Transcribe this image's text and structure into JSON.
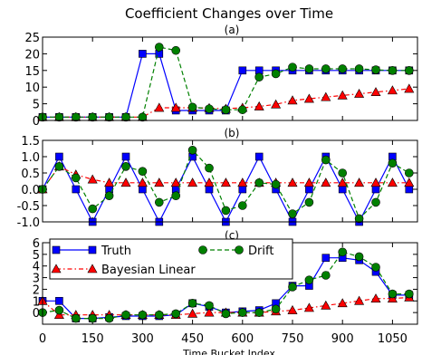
{
  "figure": {
    "title": "Coefficient Changes over Time",
    "xlabel": "Time Bucket Index",
    "xticks": [
      0,
      150,
      300,
      450,
      600,
      750,
      900,
      1050
    ],
    "xlim": [
      0,
      1125
    ]
  },
  "colors": {
    "truth": "#0000ff",
    "bayesian": "#ff0000",
    "drift": "#008000"
  },
  "chart_data": [
    {
      "type": "line",
      "subtitle": "(a)",
      "ylim": [
        0,
        25
      ],
      "yticks": [
        0,
        5,
        10,
        15,
        20,
        25
      ],
      "x": [
        0,
        50,
        100,
        150,
        200,
        250,
        300,
        350,
        400,
        450,
        500,
        550,
        600,
        650,
        700,
        750,
        800,
        850,
        900,
        950,
        1000,
        1050,
        1100
      ],
      "series": [
        {
          "name": "Truth",
          "style": "solid-square",
          "values": [
            1,
            1,
            1,
            1,
            1,
            1,
            20,
            20,
            3,
            3,
            3,
            3,
            15,
            15,
            15,
            15,
            15,
            15,
            15,
            15,
            15,
            15,
            15
          ]
        },
        {
          "name": "Bayesian Linear",
          "style": "dashdot-triangle",
          "values": [
            1,
            1,
            1,
            1,
            1,
            1,
            1,
            3.8,
            3.8,
            3.8,
            3.7,
            3.5,
            3.8,
            4.2,
            4.8,
            6,
            6.5,
            7,
            7.5,
            8,
            8.5,
            9,
            9.5
          ]
        },
        {
          "name": "Drift",
          "style": "dashed-circle",
          "values": [
            1,
            1,
            1,
            1,
            1,
            1,
            1,
            22,
            21,
            4,
            3.5,
            3.2,
            3.2,
            13,
            14,
            16,
            15.5,
            15.5,
            15.5,
            15.5,
            15.2,
            15,
            15
          ]
        }
      ]
    },
    {
      "type": "line",
      "subtitle": "(b)",
      "ylim": [
        -1.0,
        1.5
      ],
      "yticks": [
        -1.0,
        -0.5,
        0.0,
        0.5,
        1.0,
        1.5
      ],
      "x": [
        0,
        50,
        100,
        150,
        200,
        250,
        300,
        350,
        400,
        450,
        500,
        550,
        600,
        650,
        700,
        750,
        800,
        850,
        900,
        950,
        1000,
        1050,
        1100
      ],
      "series": [
        {
          "name": "Truth",
          "style": "solid-square",
          "values": [
            0,
            1,
            0,
            -1,
            0,
            1,
            0,
            -1,
            0,
            1,
            0,
            -1,
            0,
            1,
            0,
            -1,
            0,
            1,
            0,
            -1,
            0,
            1,
            0
          ]
        },
        {
          "name": "Bayesian Linear",
          "style": "dashdot-triangle",
          "values": [
            0,
            0.7,
            0.45,
            0.3,
            0.2,
            0.2,
            0.2,
            0.2,
            0.2,
            0.2,
            0.2,
            0.2,
            0.2,
            0.2,
            0.2,
            0.2,
            0.2,
            0.2,
            0.2,
            0.2,
            0.2,
            0.2,
            0.2
          ]
        },
        {
          "name": "Drift",
          "style": "dashed-circle",
          "values": [
            0,
            0.7,
            0.35,
            -0.6,
            -0.2,
            0.7,
            0.55,
            -0.4,
            -0.2,
            1.2,
            0.65,
            -0.65,
            -0.5,
            0.2,
            0.15,
            -0.75,
            -0.4,
            0.9,
            0.5,
            -0.9,
            -0.4,
            0.8,
            0.5
          ]
        }
      ]
    },
    {
      "type": "line",
      "subtitle": "(c)",
      "ylim": [
        -1,
        6
      ],
      "yticks": [
        0,
        1,
        2,
        3,
        4,
        5,
        6
      ],
      "x": [
        0,
        50,
        100,
        150,
        200,
        250,
        300,
        350,
        400,
        450,
        500,
        550,
        600,
        650,
        700,
        750,
        800,
        850,
        900,
        950,
        1000,
        1050,
        1100
      ],
      "series": [
        {
          "name": "Truth",
          "style": "solid-square",
          "values": [
            1,
            1,
            -0.5,
            -0.5,
            -0.4,
            -0.3,
            -0.3,
            -0.3,
            -0.2,
            0.8,
            0.5,
            0,
            0.1,
            0.2,
            0.8,
            2.3,
            2.3,
            4.7,
            4.7,
            4.5,
            3.5,
            1.5,
            1.5
          ]
        },
        {
          "name": "Bayesian Linear",
          "style": "dashdot-triangle",
          "values": [
            1,
            -0.2,
            -0.2,
            -0.2,
            -0.2,
            -0.2,
            -0.2,
            -0.2,
            -0.2,
            -0.1,
            0,
            0,
            0,
            0,
            0.1,
            0.2,
            0.4,
            0.6,
            0.8,
            1.0,
            1.2,
            1.2,
            1.3
          ]
        },
        {
          "name": "Drift",
          "style": "dashed-circle",
          "values": [
            0,
            0.2,
            -0.5,
            -0.5,
            -0.5,
            -0.2,
            -0.2,
            -0.2,
            -0.1,
            0.8,
            0.6,
            -0.1,
            0,
            0,
            0.3,
            2.2,
            2.8,
            3.2,
            5.2,
            4.8,
            3.9,
            1.6,
            1.6
          ]
        }
      ]
    }
  ]
}
